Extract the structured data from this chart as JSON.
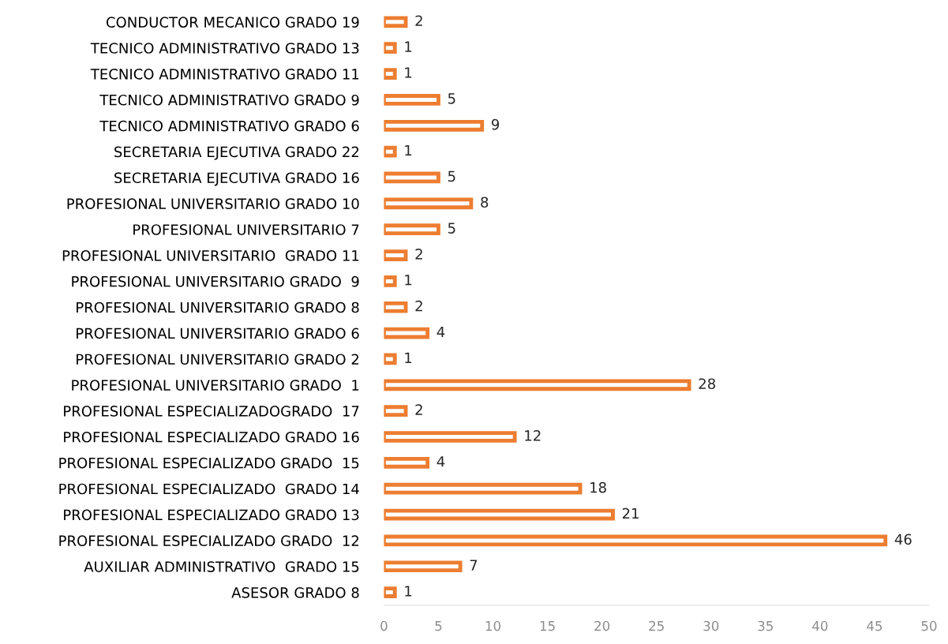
{
  "chart_data": {
    "type": "bar",
    "orientation": "horizontal",
    "categories": [
      "CONDUCTOR MECANICO GRADO 19",
      "TECNICO ADMINISTRATIVO GRADO 13",
      "TECNICO ADMINISTRATIVO GRADO 11",
      "TECNICO ADMINISTRATIVO GRADO 9",
      "TECNICO ADMINISTRATIVO GRADO 6",
      "SECRETARIA EJECUTIVA GRADO 22",
      "SECRETARIA EJECUTIVA GRADO 16",
      "PROFESIONAL UNIVERSITARIO GRADO 10",
      "PROFESIONAL UNIVERSITARIO 7",
      "PROFESIONAL UNIVERSITARIO  GRADO 11",
      "PROFESIONAL UNIVERSITARIO GRADO  9",
      "PROFESIONAL UNIVERSITARIO GRADO 8",
      "PROFESIONAL UNIVERSITARIO GRADO 6",
      "PROFESIONAL UNIVERSITARIO GRADO 2",
      "PROFESIONAL UNIVERSITARIO GRADO  1",
      "PROFESIONAL ESPECIALIZADOGRADO  17",
      "PROFESIONAL ESPECIALIZADO GRADO 16",
      "PROFESIONAL ESPECIALIZADO GRADO  15",
      "PROFESIONAL ESPECIALIZADO  GRADO 14",
      "PROFESIONAL ESPECIALIZADO GRADO 13",
      "PROFESIONAL ESPECIALIZADO GRADO  12",
      "AUXILIAR ADMINISTRATIVO  GRADO 15",
      "ASESOR GRADO 8"
    ],
    "values": [
      2,
      1,
      1,
      5,
      9,
      1,
      5,
      8,
      5,
      2,
      1,
      2,
      4,
      1,
      28,
      2,
      12,
      4,
      18,
      21,
      46,
      7,
      1
    ],
    "color": "#ed7d31",
    "xlim": [
      0,
      50
    ],
    "xticks": [
      0,
      5,
      10,
      15,
      20,
      25,
      30,
      35,
      40,
      45,
      50
    ],
    "data_labels": true,
    "grid": false,
    "legend": false
  }
}
